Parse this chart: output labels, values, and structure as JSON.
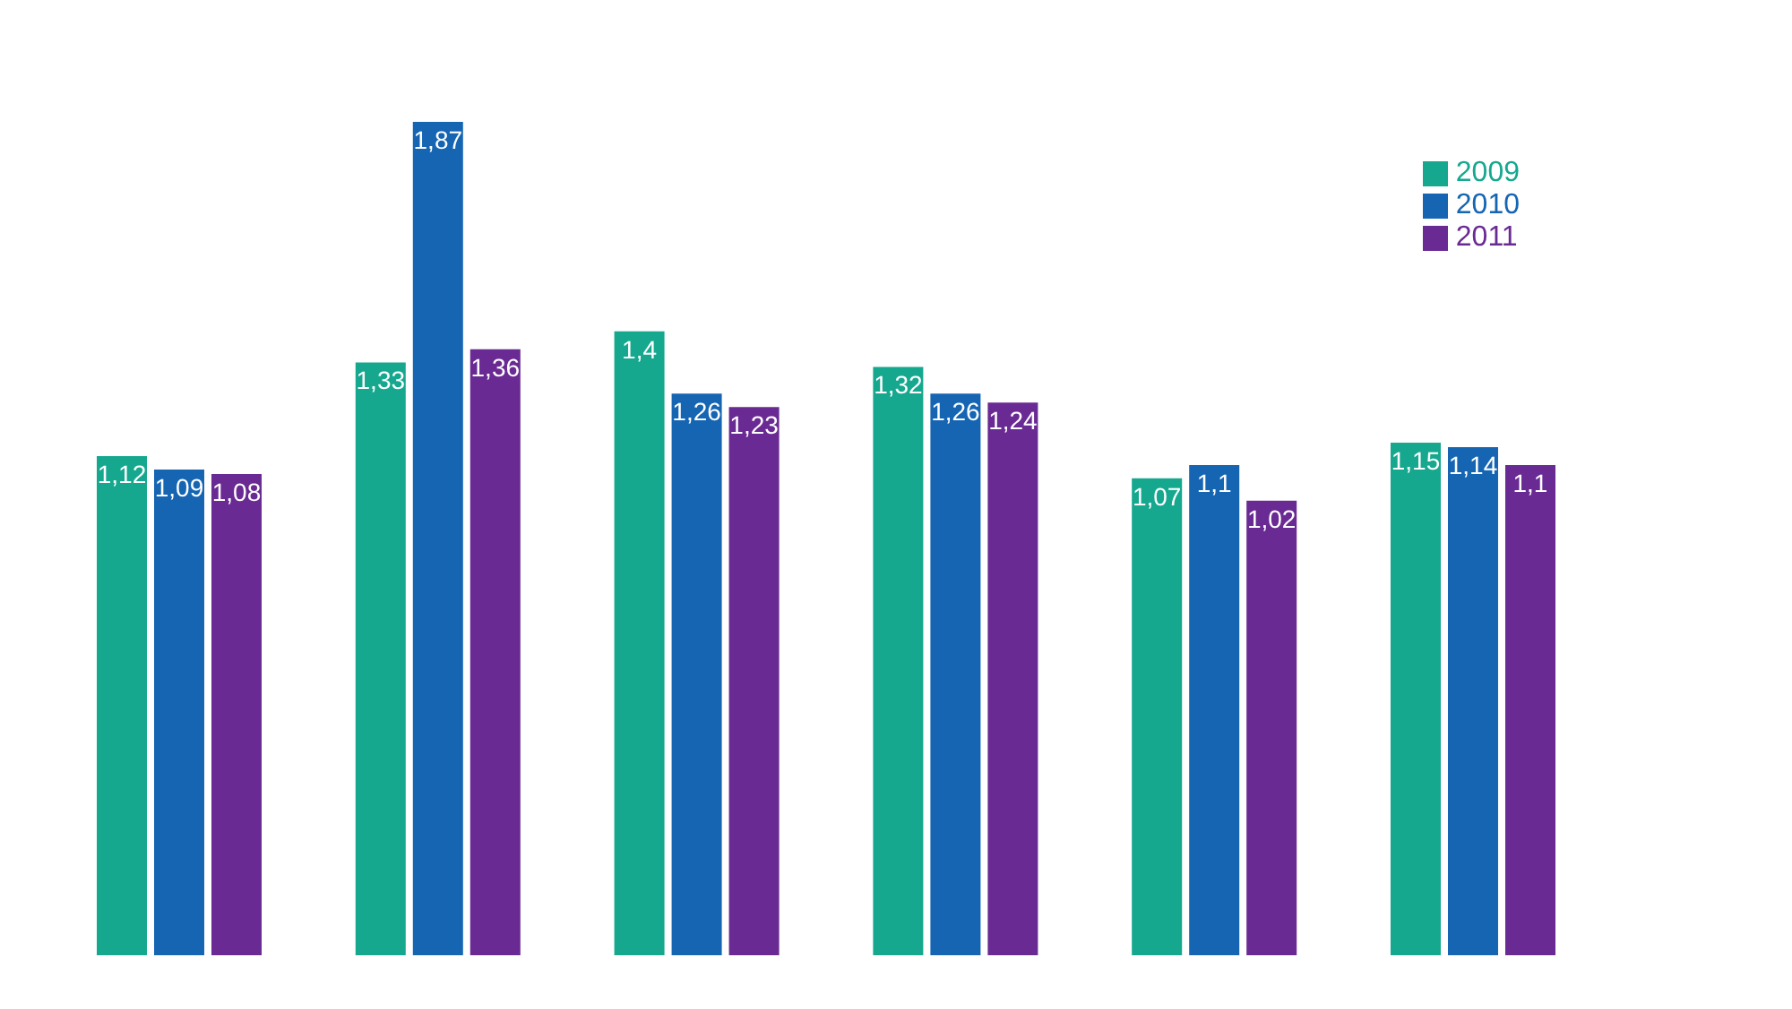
{
  "chart_data": {
    "type": "bar",
    "categories": [
      null,
      null,
      null,
      null,
      null,
      null
    ],
    "series": [
      {
        "name": "2009",
        "color": "#16a88f",
        "values": [
          1.12,
          1.33,
          1.4,
          1.32,
          1.07,
          1.15
        ],
        "value_labels": [
          "1,12",
          "1,33",
          "1,4",
          "1,32",
          "1,07",
          "1,15"
        ]
      },
      {
        "name": "2010",
        "color": "#1565b3",
        "values": [
          1.09,
          1.87,
          1.26,
          1.26,
          1.1,
          1.14
        ],
        "value_labels": [
          "1,09",
          "1,87",
          "1,26",
          "1,26",
          "1,1",
          "1,14"
        ]
      },
      {
        "name": "2011",
        "color": "#6a2a93",
        "values": [
          1.08,
          1.36,
          1.23,
          1.24,
          1.02,
          1.1
        ],
        "value_labels": [
          "1,08",
          "1,36",
          "1,23",
          "1,24",
          "1,02",
          "1,1"
        ]
      }
    ],
    "legend": "top right",
    "grid": false
  }
}
